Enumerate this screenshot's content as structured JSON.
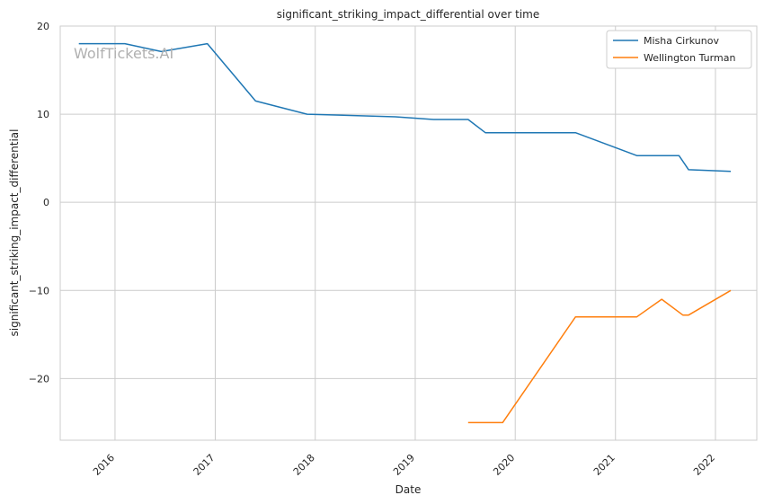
{
  "watermark": "WolfTickets.AI",
  "chart_data": {
    "type": "line",
    "title": "significant_striking_impact_differential over time",
    "xlabel": "Date",
    "ylabel": "significant_striking_impact_differential",
    "x_ticks": [
      "2016",
      "2017",
      "2018",
      "2019",
      "2020",
      "2021",
      "2022"
    ],
    "y_ticks": [
      20,
      10,
      0,
      -10,
      -20
    ],
    "y_tick_labels": [
      "20",
      "10",
      "0",
      "−10",
      "−20"
    ],
    "xlim": [
      "2015-06-15",
      "2022-06-01"
    ],
    "ylim": [
      -27,
      20
    ],
    "grid": true,
    "legend_position": "top-right",
    "series": [
      {
        "name": "Misha Cirkunov",
        "color": "#1f77b4",
        "points": [
          {
            "x": "2015-08-22",
            "y": 18.0
          },
          {
            "x": "2016-02-06",
            "y": 18.0
          },
          {
            "x": "2016-06-18",
            "y": 17.1
          },
          {
            "x": "2016-12-03",
            "y": 18.0
          },
          {
            "x": "2017-05-28",
            "y": 11.5
          },
          {
            "x": "2017-12-02",
            "y": 10.0
          },
          {
            "x": "2018-10-20",
            "y": 9.7
          },
          {
            "x": "2019-03-09",
            "y": 9.4
          },
          {
            "x": "2019-07-13",
            "y": 9.4
          },
          {
            "x": "2019-09-14",
            "y": 7.9
          },
          {
            "x": "2020-08-08",
            "y": 7.9
          },
          {
            "x": "2021-03-20",
            "y": 5.3
          },
          {
            "x": "2021-08-21",
            "y": 5.3
          },
          {
            "x": "2021-09-25",
            "y": 3.7
          },
          {
            "x": "2022-02-26",
            "y": 3.5
          }
        ]
      },
      {
        "name": "Wellington Turman",
        "color": "#ff7f0e",
        "points": [
          {
            "x": "2019-07-13",
            "y": -25.0
          },
          {
            "x": "2019-11-16",
            "y": -25.0
          },
          {
            "x": "2020-08-08",
            "y": -13.0
          },
          {
            "x": "2021-03-20",
            "y": -13.0
          },
          {
            "x": "2021-06-19",
            "y": -11.0
          },
          {
            "x": "2021-09-04",
            "y": -12.8
          },
          {
            "x": "2021-09-25",
            "y": -12.8
          },
          {
            "x": "2022-02-26",
            "y": -10.0
          }
        ]
      }
    ]
  }
}
